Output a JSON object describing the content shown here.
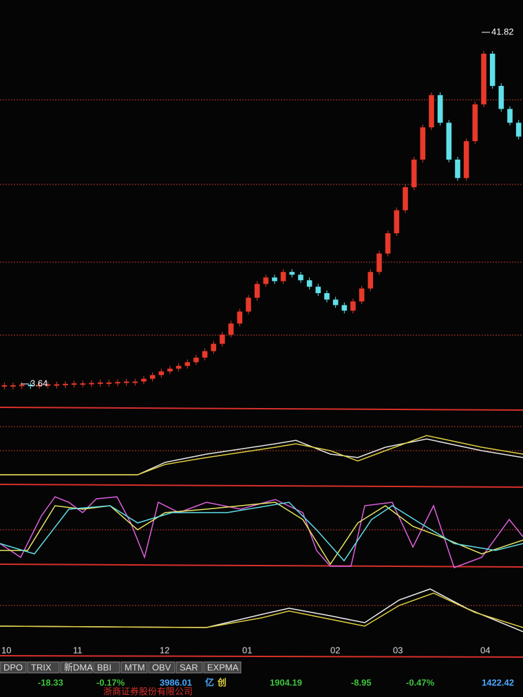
{
  "chart_data": {
    "type": "candlestick",
    "open": [
      3.5,
      3.5,
      3.5,
      3.55,
      3.5,
      3.55,
      3.6,
      3.6,
      3.65,
      3.7,
      3.7,
      3.75,
      3.8,
      3.8,
      3.85,
      3.9,
      3.9,
      4.2,
      4.6,
      5.0,
      5.3,
      5.6,
      6.0,
      6.5,
      7.2,
      8.0,
      9.0,
      10.2,
      11.5,
      13.0,
      14.5,
      15.2,
      14.8,
      15.8,
      15.5,
      14.9,
      14.2,
      13.5,
      12.8,
      12.2,
      11.6,
      12.6,
      14.0,
      15.8,
      17.8,
      20.0,
      22.5,
      25.0,
      28.0,
      31.5,
      35.0,
      32.0,
      28.0,
      26.0,
      30.0,
      34.0,
      39.5,
      36.0,
      33.5,
      32.0
    ],
    "close": [
      3.5,
      3.5,
      3.55,
      3.5,
      3.55,
      3.6,
      3.6,
      3.65,
      3.7,
      3.7,
      3.75,
      3.8,
      3.8,
      3.85,
      3.9,
      3.9,
      4.2,
      4.6,
      5.0,
      5.3,
      5.6,
      6.0,
      6.5,
      7.2,
      8.0,
      9.0,
      10.2,
      11.5,
      13.0,
      14.5,
      15.2,
      14.8,
      15.8,
      15.5,
      14.9,
      14.2,
      13.5,
      12.8,
      12.2,
      11.6,
      12.6,
      14.0,
      15.8,
      17.8,
      20.0,
      22.5,
      25.0,
      28.0,
      31.5,
      35.0,
      32.0,
      28.0,
      26.0,
      30.0,
      34.0,
      39.5,
      36.0,
      33.5,
      32.0,
      30.5
    ],
    "up_color": "#e8392a",
    "down_color": "#5fe0e8",
    "ylim": [
      1.25,
      45.33
    ],
    "price_labels": [
      41.82,
      3.64
    ],
    "months": [
      "10",
      "11",
      "12",
      "01",
      "02",
      "03",
      "04"
    ]
  },
  "tabs": [
    "DPO",
    "TRIX",
    "新DMA",
    "BBI",
    "MTM",
    "OBV",
    "SAR",
    "EXPMA"
  ],
  "status": [
    "-18.33",
    "-0.17%",
    "3986.01",
    "亿",
    "创",
    "1904.19",
    "-8.95",
    "-0.47%",
    "1422.42"
  ],
  "footer": "浙商证券股份有限公司"
}
